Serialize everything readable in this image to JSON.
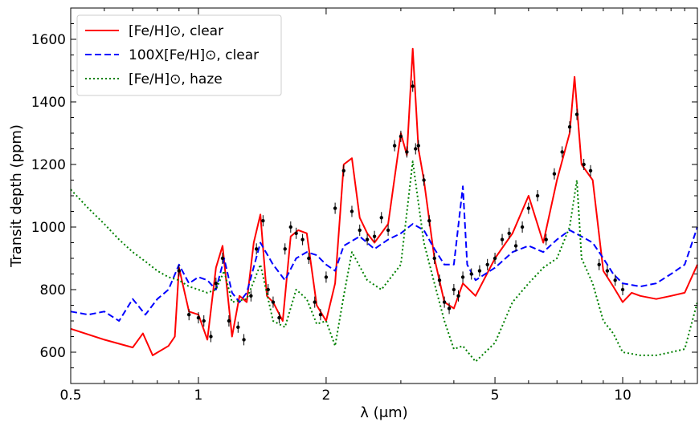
{
  "chart_data": {
    "type": "line",
    "xlabel": "λ (μm)",
    "ylabel": "Transit depth (ppm)",
    "xscale": "log",
    "xlim": [
      0.5,
      15
    ],
    "ylim": [
      500,
      1700
    ],
    "xticks": [
      0.5,
      1,
      2,
      5,
      10
    ],
    "xtick_labels": [
      "0.5",
      "1",
      "2",
      "5",
      "10"
    ],
    "yticks": [
      600,
      800,
      1000,
      1200,
      1400,
      1600
    ],
    "ytick_labels": [
      "600",
      "800",
      "1000",
      "1200",
      "1400",
      "1600"
    ],
    "grid": false,
    "legend_position": "top-left",
    "series": [
      {
        "name": "[Fe/H]⊙, clear",
        "color": "#ff0000",
        "style": "solid",
        "x": [
          0.5,
          0.6,
          0.7,
          0.74,
          0.78,
          0.85,
          0.88,
          0.9,
          0.95,
          1.0,
          1.05,
          1.1,
          1.14,
          1.2,
          1.25,
          1.3,
          1.35,
          1.4,
          1.45,
          1.5,
          1.58,
          1.65,
          1.72,
          1.8,
          1.9,
          2.0,
          2.1,
          2.2,
          2.3,
          2.4,
          2.5,
          2.6,
          2.8,
          3.0,
          3.1,
          3.2,
          3.3,
          3.4,
          3.6,
          3.8,
          4.0,
          4.2,
          4.5,
          5.0,
          5.5,
          6.0,
          6.5,
          7.0,
          7.5,
          7.7,
          8.0,
          8.5,
          9.0,
          9.5,
          10.0,
          10.5,
          11.0,
          12.0,
          13.0,
          14.0,
          15.0
        ],
        "y": [
          675,
          640,
          615,
          660,
          590,
          620,
          650,
          870,
          730,
          720,
          640,
          870,
          940,
          650,
          780,
          760,
          950,
          1040,
          780,
          760,
          700,
          970,
          990,
          980,
          750,
          700,
          820,
          1200,
          1220,
          1030,
          980,
          950,
          1010,
          1300,
          1230,
          1570,
          1250,
          1150,
          900,
          760,
          740,
          820,
          780,
          900,
          980,
          1100,
          950,
          1150,
          1300,
          1480,
          1200,
          1150,
          860,
          810,
          760,
          790,
          780,
          770,
          780,
          790,
          880
        ]
      },
      {
        "name": "100X[Fe/H]⊙, clear",
        "color": "#0000ff",
        "style": "dashed",
        "x": [
          0.5,
          0.55,
          0.6,
          0.65,
          0.7,
          0.75,
          0.8,
          0.85,
          0.9,
          0.95,
          1.0,
          1.05,
          1.1,
          1.15,
          1.2,
          1.25,
          1.3,
          1.4,
          1.5,
          1.6,
          1.7,
          1.8,
          1.9,
          2.0,
          2.1,
          2.2,
          2.4,
          2.6,
          2.8,
          3.0,
          3.2,
          3.4,
          3.6,
          3.8,
          4.0,
          4.2,
          4.3,
          4.5,
          5.0,
          5.5,
          6.0,
          6.5,
          7.0,
          7.5,
          8.0,
          8.5,
          9.0,
          9.5,
          10.0,
          11.0,
          12.0,
          13.0,
          14.0,
          15.0
        ],
        "y": [
          730,
          720,
          730,
          700,
          770,
          720,
          770,
          800,
          880,
          820,
          840,
          830,
          800,
          900,
          790,
          760,
          790,
          950,
          880,
          830,
          900,
          920,
          910,
          880,
          860,
          940,
          970,
          930,
          960,
          980,
          1010,
          990,
          930,
          880,
          880,
          1130,
          880,
          830,
          870,
          920,
          940,
          920,
          960,
          990,
          970,
          950,
          900,
          850,
          820,
          810,
          820,
          850,
          880,
          1000
        ]
      },
      {
        "name": "[Fe/H]⊙, haze",
        "color": "#008000",
        "style": "dotted",
        "x": [
          0.5,
          0.55,
          0.6,
          0.65,
          0.7,
          0.75,
          0.8,
          0.85,
          0.9,
          0.95,
          1.0,
          1.05,
          1.1,
          1.15,
          1.2,
          1.3,
          1.4,
          1.5,
          1.6,
          1.7,
          1.8,
          1.9,
          2.0,
          2.1,
          2.2,
          2.3,
          2.5,
          2.7,
          3.0,
          3.2,
          3.4,
          3.6,
          3.8,
          4.0,
          4.2,
          4.5,
          5.0,
          5.5,
          6.0,
          6.5,
          7.0,
          7.5,
          7.8,
          8.0,
          8.5,
          9.0,
          9.5,
          10.0,
          11.0,
          12.0,
          13.0,
          14.0,
          15.0
        ],
        "y": [
          1120,
          1060,
          1010,
          960,
          920,
          890,
          860,
          840,
          830,
          810,
          800,
          790,
          800,
          860,
          760,
          770,
          880,
          700,
          680,
          800,
          770,
          690,
          700,
          620,
          780,
          920,
          830,
          800,
          880,
          1210,
          950,
          820,
          700,
          610,
          620,
          570,
          630,
          760,
          820,
          870,
          900,
          1000,
          1150,
          900,
          820,
          700,
          660,
          600,
          590,
          590,
          600,
          610,
          760
        ]
      }
    ],
    "observations": {
      "color": "#000000",
      "x": [
        0.9,
        0.95,
        1.0,
        1.03,
        1.07,
        1.1,
        1.14,
        1.18,
        1.24,
        1.28,
        1.33,
        1.37,
        1.42,
        1.46,
        1.5,
        1.55,
        1.6,
        1.65,
        1.7,
        1.76,
        1.82,
        1.88,
        1.94,
        2.0,
        2.1,
        2.2,
        2.3,
        2.4,
        2.5,
        2.6,
        2.7,
        2.8,
        2.9,
        3.0,
        3.1,
        3.2,
        3.25,
        3.3,
        3.4,
        3.5,
        3.6,
        3.7,
        3.8,
        3.9,
        4.0,
        4.1,
        4.2,
        4.4,
        4.6,
        4.8,
        5.0,
        5.2,
        5.4,
        5.6,
        5.8,
        6.0,
        6.3,
        6.6,
        6.9,
        7.2,
        7.5,
        7.8,
        8.1,
        8.4,
        8.8,
        9.2,
        9.6,
        10.0
      ],
      "y": [
        860,
        720,
        710,
        700,
        650,
        820,
        900,
        700,
        680,
        640,
        780,
        930,
        1020,
        800,
        760,
        710,
        930,
        1000,
        980,
        960,
        900,
        760,
        720,
        840,
        1060,
        1180,
        1050,
        990,
        960,
        970,
        1030,
        990,
        1260,
        1290,
        1240,
        1450,
        1250,
        1260,
        1150,
        1020,
        900,
        830,
        760,
        740,
        800,
        780,
        840,
        850,
        860,
        880,
        900,
        960,
        980,
        940,
        1000,
        1060,
        1100,
        960,
        1170,
        1240,
        1320,
        1360,
        1200,
        1180,
        880,
        860,
        830,
        800
      ]
    }
  }
}
